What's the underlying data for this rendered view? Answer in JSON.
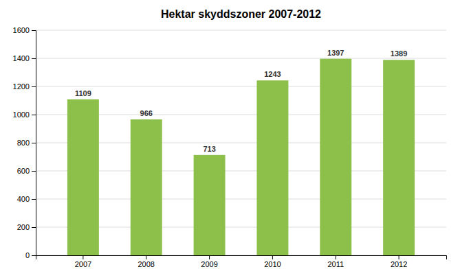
{
  "chart_data": {
    "type": "bar",
    "title": "Hektar skyddszoner 2007-2012",
    "categories": [
      "2007",
      "2008",
      "2009",
      "2010",
      "2011",
      "2012"
    ],
    "values": [
      1109,
      966,
      713,
      1243,
      1397,
      1389
    ],
    "color": "#8DC04B",
    "ylim": [
      0,
      1600
    ],
    "yticks": [
      0,
      200,
      400,
      600,
      800,
      1000,
      1200,
      1400,
      1600
    ],
    "grid": true,
    "data_labels": true
  }
}
